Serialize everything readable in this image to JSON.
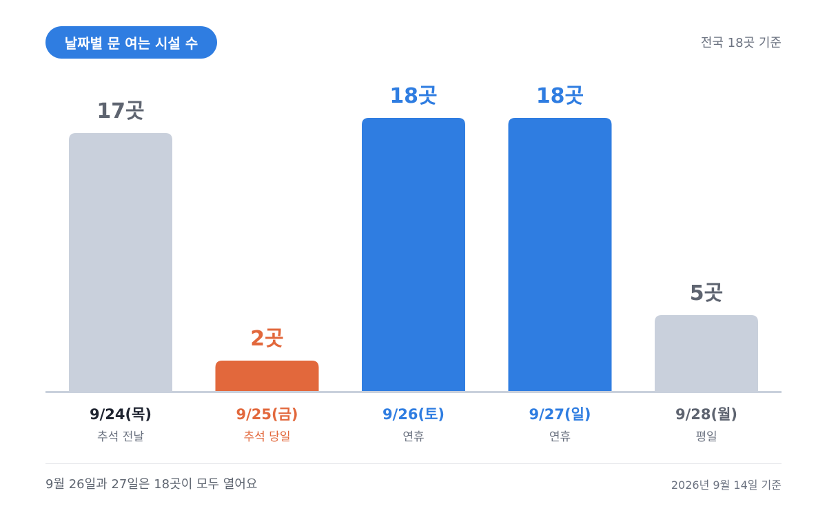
{
  "header": {
    "pill_label": "날짜별 문 여는 시설 수",
    "total_note": "전국 18곳 기준"
  },
  "chart_data": {
    "type": "bar",
    "title": "날짜별 문 여는 시설 수",
    "unit": "곳",
    "ylim": [
      0,
      18
    ],
    "grid": false,
    "categories": [
      "9/24(목)",
      "9/25(금)",
      "9/26(토)",
      "9/27(일)",
      "9/28(월)"
    ],
    "sublabels": [
      "추석 전날",
      "추석 당일",
      "연휴",
      "연휴",
      "평일"
    ],
    "values": [
      17,
      2,
      18,
      18,
      5
    ],
    "value_labels": [
      "17곳",
      "2곳",
      "18곳",
      "18곳",
      "5곳"
    ],
    "bar_colors": [
      "#c9d0dc",
      "#e2683c",
      "#2f7de1",
      "#2f7de1",
      "#c9d0dc"
    ],
    "value_label_colors": [
      "#5e6470",
      "#e2683c",
      "#2f7de1",
      "#2f7de1",
      "#5e6470"
    ],
    "category_label_colors": [
      "#1f2430",
      "#e2683c",
      "#2f7de1",
      "#2f7de1",
      "#5e6470"
    ],
    "sublabel_colors": [
      "#6b7280",
      "#e2683c",
      "#6b7280",
      "#6b7280",
      "#6b7280"
    ],
    "baseline_color": "#c9d0dc"
  },
  "footer": {
    "note": "9월 26일과 27일은 18곳이 모두 열어요",
    "as_of": "2026년 9월 14일 기준"
  }
}
